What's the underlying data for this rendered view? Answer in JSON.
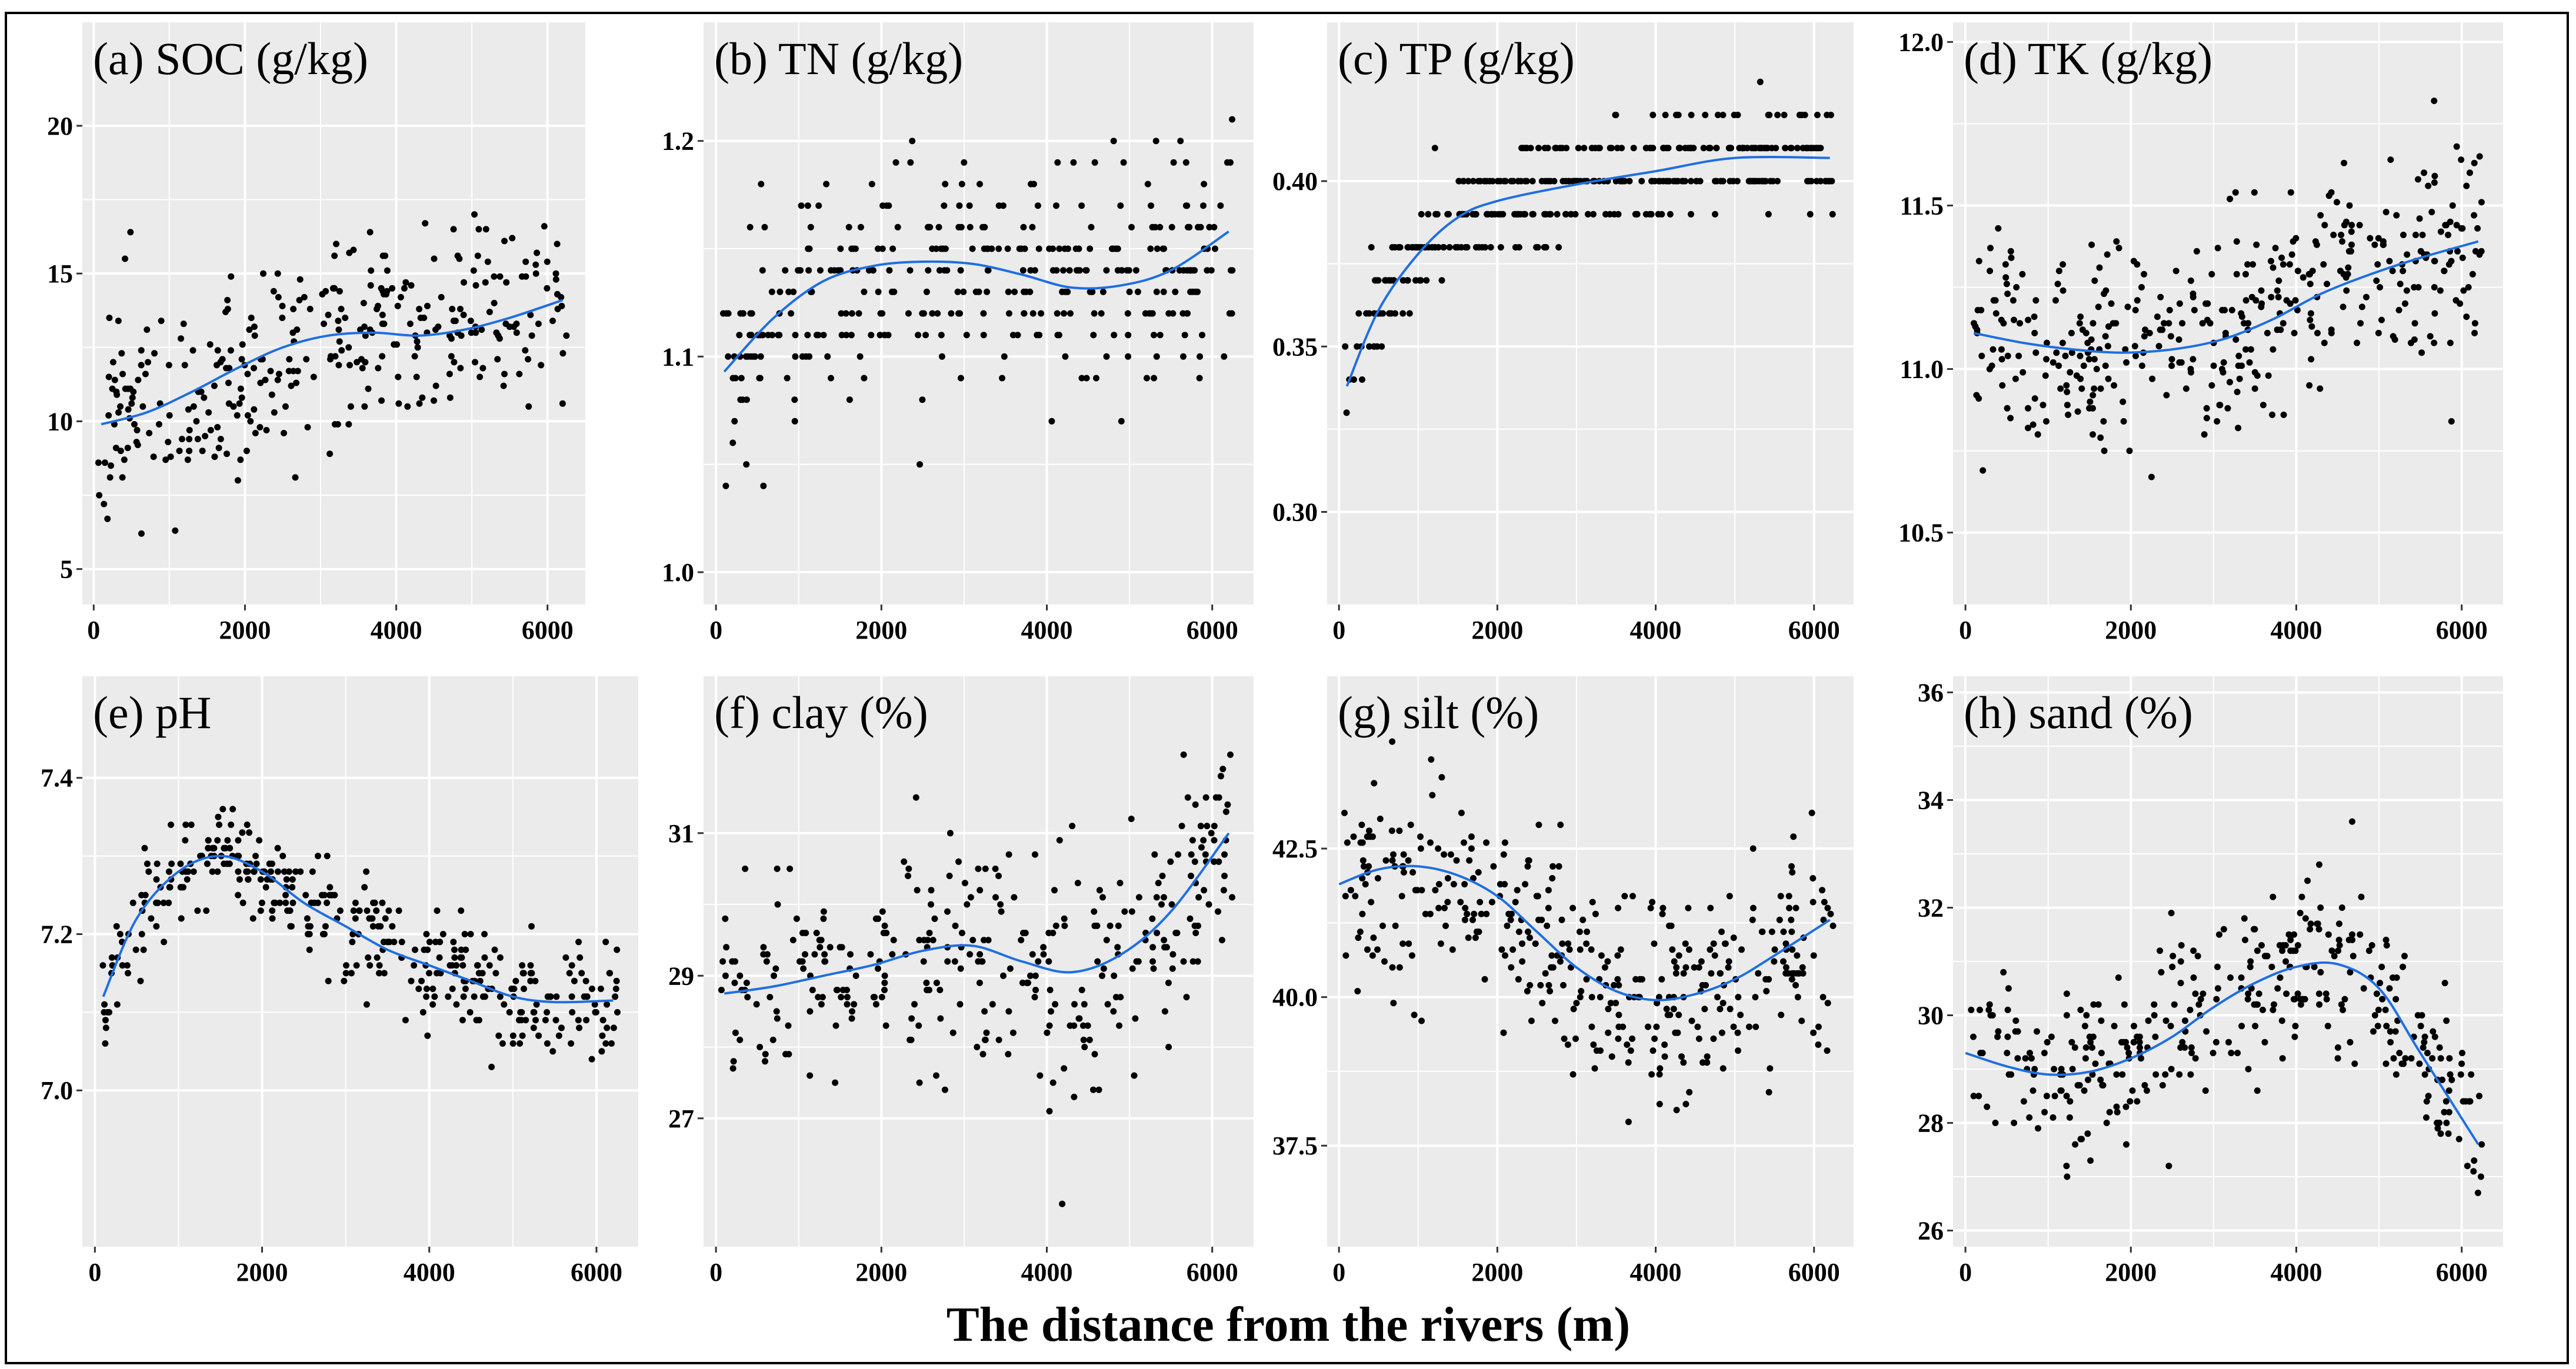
{
  "figure": {
    "xlabel": "The distance from the rivers (m)",
    "colors": {
      "panel_bg": "#ebebeb",
      "grid": "#ffffff",
      "points": "#000000",
      "smooth": "#1f6fe0",
      "border": "#000000"
    }
  },
  "chart_data": [
    {
      "id": "a",
      "type": "scatter",
      "title": "(a) SOC (g/kg)",
      "xlim": [
        -150,
        6500
      ],
      "ylim": [
        3.8,
        23.5
      ],
      "xticks": [
        0,
        2000,
        4000,
        6000
      ],
      "yticks": [
        5,
        10,
        15,
        20
      ],
      "ytick_labels": [
        "5",
        "10",
        "15",
        "20"
      ],
      "smooth": {
        "x": [
          100,
          700,
          1300,
          1900,
          2500,
          3100,
          3700,
          4300,
          4900,
          5500,
          6200
        ],
        "y": [
          9.9,
          10.3,
          11.0,
          11.8,
          12.5,
          12.9,
          13.0,
          12.9,
          13.1,
          13.5,
          14.1
        ]
      },
      "points": {
        "base": [
          9.9,
          10.3,
          11.0,
          11.8,
          12.5,
          12.9,
          13.0,
          12.9,
          13.1,
          13.5,
          14.1
        ],
        "spread": 3.2,
        "n": 330,
        "round": 0.1,
        "min": 4.8,
        "max": 21.5,
        "seed": 11
      }
    },
    {
      "id": "b",
      "type": "scatter",
      "title": "(b) TN (g/kg)",
      "xlim": [
        -150,
        6500
      ],
      "ylim": [
        0.985,
        1.255
      ],
      "xticks": [
        0,
        2000,
        4000,
        6000
      ],
      "yticks": [
        1.0,
        1.1,
        1.2
      ],
      "ytick_labels": [
        "1.0",
        "1.1",
        "1.2"
      ],
      "smooth": {
        "x": [
          100,
          700,
          1300,
          1900,
          2500,
          3100,
          3700,
          4300,
          4900,
          5500,
          6200
        ],
        "y": [
          1.093,
          1.118,
          1.135,
          1.142,
          1.144,
          1.143,
          1.138,
          1.132,
          1.133,
          1.14,
          1.158
        ]
      },
      "points": {
        "base": [
          1.093,
          1.118,
          1.135,
          1.142,
          1.144,
          1.143,
          1.138,
          1.132,
          1.133,
          1.14,
          1.158
        ],
        "spread": 0.045,
        "n": 360,
        "round": 0.01,
        "min": 1.0,
        "max": 1.25,
        "seed": 23
      }
    },
    {
      "id": "c",
      "type": "scatter",
      "title": "(c) TP (g/kg)",
      "xlim": [
        -150,
        6500
      ],
      "ylim": [
        0.272,
        0.448
      ],
      "xticks": [
        0,
        2000,
        4000,
        6000
      ],
      "yticks": [
        0.3,
        0.35,
        0.4
      ],
      "ytick_labels": [
        "0.30",
        "0.35",
        "0.40"
      ],
      "smooth": {
        "x": [
          100,
          500,
          1000,
          1500,
          2000,
          3000,
          4000,
          5000,
          6200
        ],
        "y": [
          0.338,
          0.361,
          0.378,
          0.389,
          0.394,
          0.399,
          0.403,
          0.407,
          0.407
        ]
      },
      "points": {
        "base": [
          0.338,
          0.361,
          0.378,
          0.389,
          0.394,
          0.399,
          0.403,
          0.407,
          0.407
        ],
        "spread": 0.014,
        "n": 380,
        "round": 0.01,
        "min": 0.28,
        "max": 0.44,
        "seed": 37
      }
    },
    {
      "id": "d",
      "type": "scatter",
      "title": "(d) TK (g/kg)",
      "xlim": [
        -150,
        6500
      ],
      "ylim": [
        10.28,
        12.06
      ],
      "xticks": [
        0,
        2000,
        4000,
        6000
      ],
      "yticks": [
        10.5,
        11.0,
        11.5,
        12.0
      ],
      "ytick_labels": [
        "10.5",
        "11.0",
        "11.5",
        "12.0"
      ],
      "smooth": {
        "x": [
          100,
          700,
          1300,
          1900,
          2500,
          3100,
          3700,
          4300,
          4900,
          5500,
          6200
        ],
        "y": [
          11.11,
          11.08,
          11.06,
          11.05,
          11.06,
          11.09,
          11.15,
          11.23,
          11.29,
          11.34,
          11.39
        ]
      },
      "points": {
        "base": [
          11.11,
          11.08,
          11.06,
          11.05,
          11.06,
          11.09,
          11.15,
          11.23,
          11.29,
          11.34,
          11.39
        ],
        "spread": 0.3,
        "n": 400,
        "round": 0.01,
        "min": 10.3,
        "max": 11.95,
        "seed": 41
      }
    },
    {
      "id": "e",
      "type": "scatter",
      "title": "(e) pH",
      "xlim": [
        -150,
        6500
      ],
      "ylim": [
        6.8,
        7.53
      ],
      "xticks": [
        0,
        2000,
        4000,
        6000
      ],
      "yticks": [
        7.0,
        7.2,
        7.4
      ],
      "ytick_labels": [
        "7.0",
        "7.2",
        "7.4"
      ],
      "smooth": {
        "x": [
          100,
          500,
          1000,
          1500,
          2000,
          2500,
          3000,
          3500,
          4000,
          4500,
          5000,
          5500,
          6200
        ],
        "y": [
          7.12,
          7.22,
          7.28,
          7.3,
          7.28,
          7.24,
          7.21,
          7.18,
          7.16,
          7.14,
          7.12,
          7.113,
          7.115
        ]
      },
      "points": {
        "base": [
          7.12,
          7.22,
          7.28,
          7.3,
          7.28,
          7.24,
          7.21,
          7.18,
          7.16,
          7.14,
          7.12,
          7.113,
          7.115
        ],
        "spread": 0.065,
        "n": 380,
        "round": 0.01,
        "min": 6.84,
        "max": 7.48,
        "seed": 53
      }
    },
    {
      "id": "f",
      "type": "scatter",
      "title": "(f) clay (%)",
      "xlim": [
        -150,
        6500
      ],
      "ylim": [
        25.2,
        33.2
      ],
      "xticks": [
        0,
        2000,
        4000,
        6000
      ],
      "yticks": [
        27,
        29,
        31
      ],
      "ytick_labels": [
        "27",
        "29",
        "31"
      ],
      "smooth": {
        "x": [
          100,
          700,
          1300,
          1900,
          2500,
          3100,
          3700,
          4300,
          4900,
          5500,
          6200
        ],
        "y": [
          28.75,
          28.85,
          29.0,
          29.15,
          29.35,
          29.42,
          29.2,
          29.05,
          29.3,
          29.9,
          31.0
        ]
      },
      "points": {
        "base": [
          28.75,
          28.85,
          29.0,
          29.15,
          29.35,
          29.42,
          29.2,
          29.05,
          29.3,
          29.9,
          31.0
        ],
        "spread": 1.5,
        "n": 330,
        "round": 0.1,
        "min": 25.5,
        "max": 32.8,
        "seed": 61
      }
    },
    {
      "id": "g",
      "type": "scatter",
      "title": "(g) silt (%)",
      "xlim": [
        -150,
        6500
      ],
      "ylim": [
        35.8,
        45.4
      ],
      "xticks": [
        0,
        2000,
        4000,
        6000
      ],
      "yticks": [
        37.5,
        40.0,
        42.5
      ],
      "ytick_labels": [
        "37.5",
        "40.0",
        "42.5"
      ],
      "smooth": {
        "x": [
          0,
          500,
          1000,
          1500,
          2000,
          2500,
          3000,
          3500,
          4000,
          4500,
          5000,
          5500,
          6200
        ],
        "y": [
          41.9,
          42.15,
          42.2,
          42.05,
          41.7,
          41.1,
          40.5,
          40.1,
          39.95,
          40.05,
          40.3,
          40.7,
          41.3
        ]
      },
      "points": {
        "base": [
          41.9,
          42.15,
          42.2,
          42.05,
          41.7,
          41.1,
          40.5,
          40.1,
          39.95,
          40.05,
          40.3,
          40.7,
          41.3
        ],
        "spread": 1.6,
        "n": 380,
        "round": 0.1,
        "min": 36.2,
        "max": 44.9,
        "seed": 73
      }
    },
    {
      "id": "h",
      "type": "scatter",
      "title": "(h) sand (%)",
      "xlim": [
        -150,
        6500
      ],
      "ylim": [
        25.7,
        36.3
      ],
      "xticks": [
        0,
        2000,
        4000,
        6000
      ],
      "yticks": [
        26,
        28,
        30,
        32,
        34,
        36
      ],
      "ytick_labels": [
        "26",
        "28",
        "30",
        "32",
        "34",
        "36"
      ],
      "smooth": {
        "x": [
          0,
          500,
          1000,
          1500,
          2000,
          2500,
          3000,
          3500,
          4000,
          4500,
          5000,
          5500,
          6200
        ],
        "y": [
          29.3,
          29.05,
          28.9,
          28.95,
          29.2,
          29.6,
          30.15,
          30.6,
          30.9,
          30.95,
          30.5,
          29.3,
          27.6
        ]
      },
      "points": {
        "base": [
          29.3,
          29.05,
          28.9,
          28.95,
          29.2,
          29.6,
          30.15,
          30.6,
          30.9,
          30.95,
          30.5,
          29.3,
          27.6
        ],
        "spread": 1.4,
        "n": 360,
        "round": 0.1,
        "min": 26.1,
        "max": 35.8,
        "seed": 89
      }
    }
  ]
}
